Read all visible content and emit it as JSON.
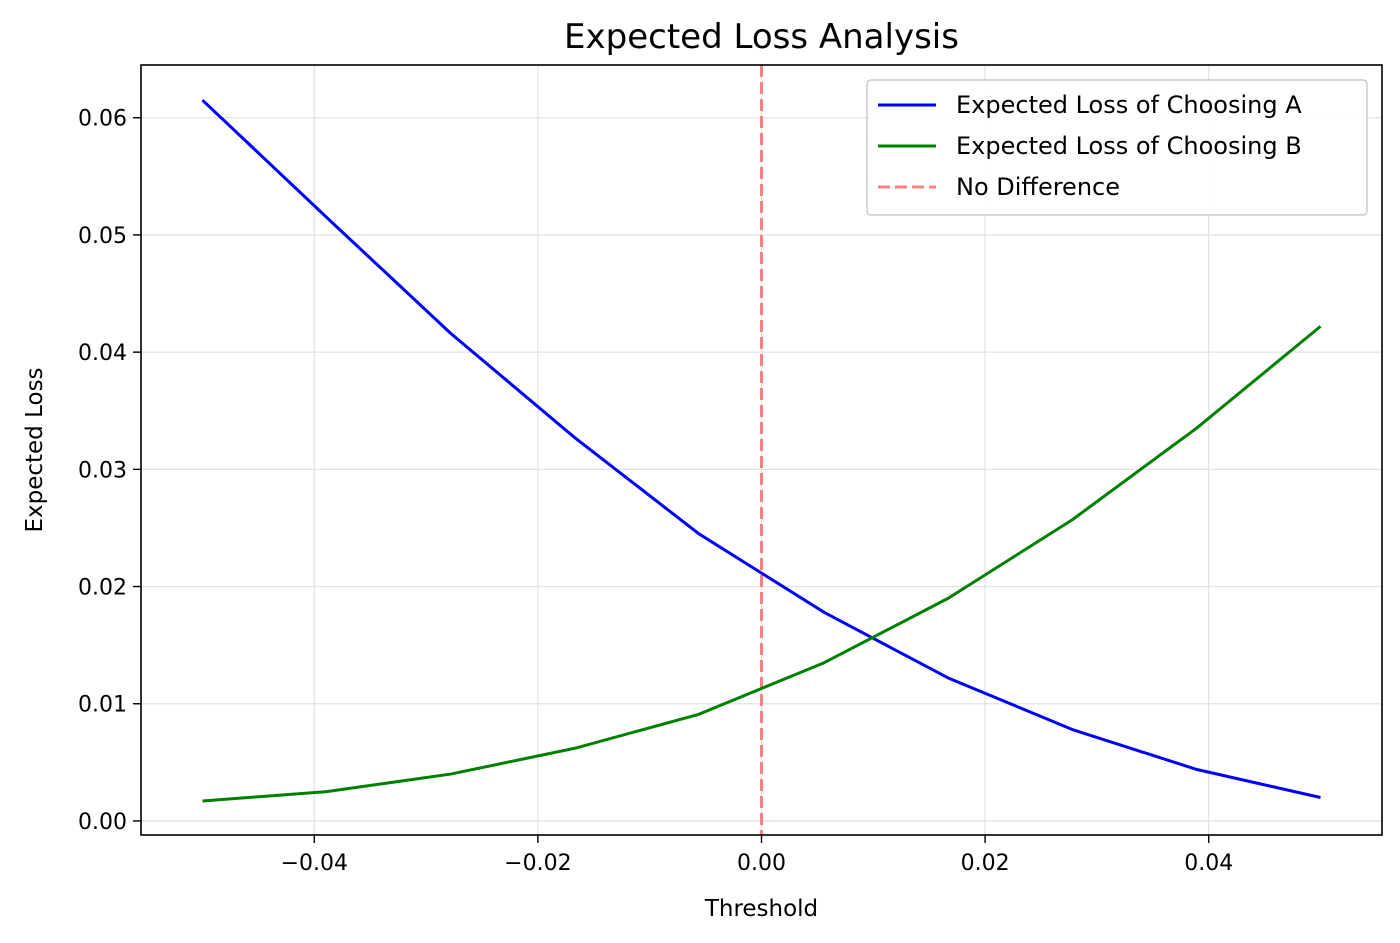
{
  "chart_data": {
    "type": "line",
    "title": "Expected Loss Analysis",
    "xlabel": "Threshold",
    "ylabel": "Expected Loss",
    "xlim": [
      -0.0555,
      0.0555
    ],
    "ylim": [
      -0.0012,
      0.0645
    ],
    "xticks": [
      -0.04,
      -0.02,
      0.0,
      0.02,
      0.04
    ],
    "xtick_labels": [
      "−0.04",
      "−0.02",
      "0.00",
      "0.02",
      "0.04"
    ],
    "yticks": [
      0.0,
      0.01,
      0.02,
      0.03,
      0.04,
      0.05,
      0.06
    ],
    "ytick_labels": [
      "0.00",
      "0.01",
      "0.02",
      "0.03",
      "0.04",
      "0.05",
      "0.06"
    ],
    "grid": true,
    "legend_position": "top-right",
    "x": [
      -0.05,
      -0.0389,
      -0.0278,
      -0.0167,
      -0.0056,
      0.0056,
      0.0167,
      0.0278,
      0.0389,
      0.05
    ],
    "series": [
      {
        "name": "Expected Loss of Choosing A",
        "color": "#0000ff",
        "style": "solid",
        "values": [
          0.0615,
          0.0515,
          0.0416,
          0.0327,
          0.0245,
          0.0178,
          0.0122,
          0.0078,
          0.0044,
          0.002
        ]
      },
      {
        "name": "Expected Loss of Choosing B",
        "color": "#008000",
        "style": "solid",
        "values": [
          0.0017,
          0.0025,
          0.004,
          0.0062,
          0.0091,
          0.0135,
          0.019,
          0.0257,
          0.0335,
          0.0422
        ]
      }
    ],
    "reference_lines": [
      {
        "name": "No Difference",
        "orientation": "vertical",
        "x": 0.0,
        "color": "#ff8080",
        "style": "dashed"
      }
    ]
  }
}
